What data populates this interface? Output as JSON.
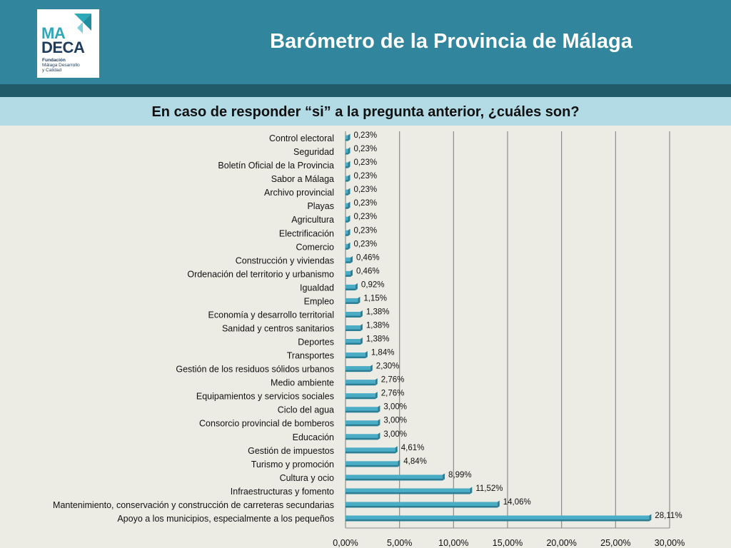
{
  "header": {
    "title": "Barómetro de la Provincia de Málaga",
    "logo": {
      "line1": "MA",
      "line2": "DECA",
      "sub_bold": "Fundación",
      "sub1": "Málaga Desarrollo",
      "sub2": "y Calidad"
    }
  },
  "question": "En caso de responder “si” a la pregunta anterior, ¿cuáles son?",
  "colors": {
    "header": "#31859c",
    "header_stripe": "#215a69",
    "question_bar": "#b3dbe6",
    "bar": "#4bacc6",
    "bar_dark": "#2c7e95",
    "background": "#ecebe4"
  },
  "chart_data": {
    "type": "bar",
    "orientation": "horizontal",
    "title": "",
    "xlabel": "",
    "ylabel": "",
    "xlim": [
      0,
      30
    ],
    "grid": true,
    "tick_labels": [
      "0,00%",
      "5,00%",
      "10,00%",
      "15,00%",
      "20,00%",
      "25,00%",
      "30,00%"
    ],
    "categories": [
      "Control electoral",
      "Seguridad",
      "Boletín Oficial de la Provincia",
      "Sabor a Málaga",
      "Archivo provincial",
      "Playas",
      "Agricultura",
      "Electrificación",
      "Comercio",
      "Construcción y viviendas",
      "Ordenación del territorio y urbanismo",
      "Igualdad",
      "Empleo",
      "Economía y desarrollo territorial",
      "Sanidad y centros sanitarios",
      "Deportes",
      "Transportes",
      "Gestión de los residuos sólidos urbanos",
      "Medio ambiente",
      "Equipamientos y servicios sociales",
      "Ciclo del agua",
      "Consorcio provincial de bomberos",
      "Educación",
      "Gestión de impuestos",
      "Turismo y promoción",
      "Cultura y ocio",
      "Infraestructuras y fomento",
      "Mantenimiento, conservación y construcción de carreteras secundarias",
      "Apoyo a los municipios, especialmente a los pequeños"
    ],
    "values": [
      0.23,
      0.23,
      0.23,
      0.23,
      0.23,
      0.23,
      0.23,
      0.23,
      0.23,
      0.46,
      0.46,
      0.92,
      1.15,
      1.38,
      1.38,
      1.38,
      1.84,
      2.3,
      2.76,
      2.76,
      3.0,
      3.0,
      3.0,
      4.61,
      4.84,
      8.99,
      11.52,
      14.06,
      28.11
    ],
    "value_labels": [
      "0,23%",
      "0,23%",
      "0,23%",
      "0,23%",
      "0,23%",
      "0,23%",
      "0,23%",
      "0,23%",
      "0,23%",
      "0,46%",
      "0,46%",
      "0,92%",
      "1,15%",
      "1,38%",
      "1,38%",
      "1,38%",
      "1,84%",
      "2,30%",
      "2,76%",
      "2,76%",
      "3,00%",
      "3,00%",
      "3,00%",
      "4,61%",
      "4,84%",
      "8,99%",
      "11,52%",
      "14,06%",
      "28,11%"
    ]
  }
}
